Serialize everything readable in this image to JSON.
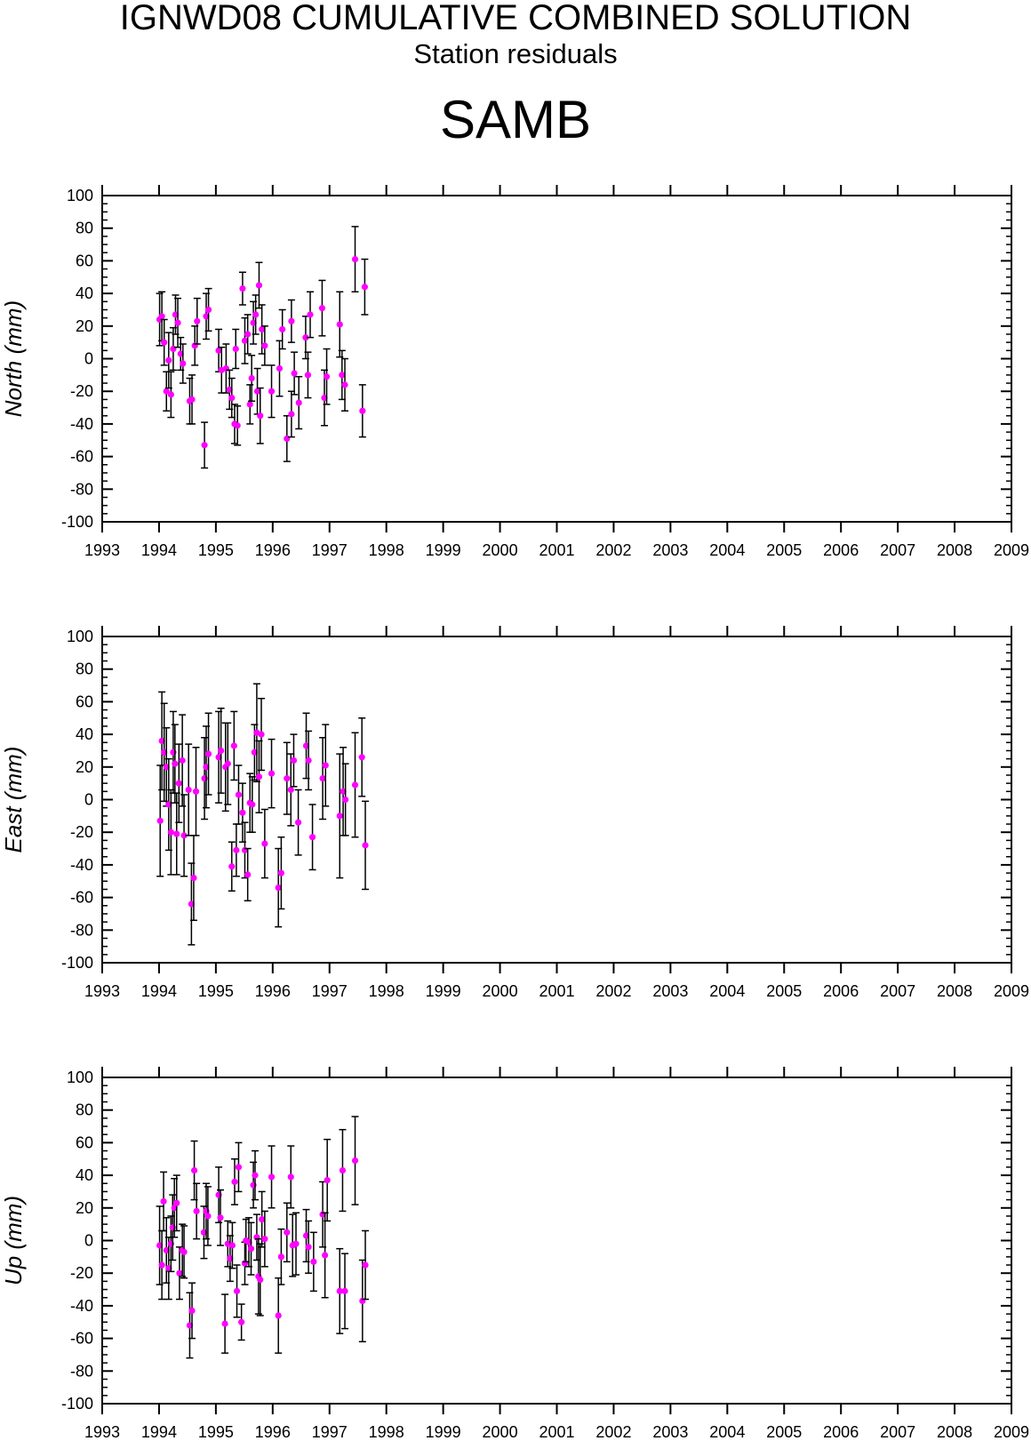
{
  "header": {
    "title": "IGNWD08 CUMULATIVE COMBINED SOLUTION",
    "subtitle": "Station residuals",
    "station": "SAMB"
  },
  "colors": {
    "point": "#ff00ff",
    "errorbar": "#000000",
    "axis": "#000000"
  },
  "chart_data": [
    {
      "type": "scatter",
      "ylabel": "North (mm)",
      "xlim": [
        1993,
        2009
      ],
      "ylim": [
        -100,
        100
      ],
      "x_ticks": [
        "1993",
        "1994",
        "1995",
        "1996",
        "1997",
        "1998",
        "1999",
        "2000",
        "2001",
        "2002",
        "2003",
        "2004",
        "2005",
        "2006",
        "2007",
        "2008",
        "2009"
      ],
      "y_ticks": [
        "100",
        "80",
        "60",
        "40",
        "20",
        "0",
        "-20",
        "-40",
        "-60",
        "-80",
        "-100"
      ],
      "error_bars": true,
      "points": [
        {
          "x": 1994.01,
          "y": 24,
          "err": 16
        },
        {
          "x": 1994.05,
          "y": 26,
          "err": 15
        },
        {
          "x": 1994.09,
          "y": 10,
          "err": 14
        },
        {
          "x": 1994.13,
          "y": -20,
          "err": 12
        },
        {
          "x": 1994.17,
          "y": -1,
          "err": 17
        },
        {
          "x": 1994.21,
          "y": -22,
          "err": 14
        },
        {
          "x": 1994.25,
          "y": 6,
          "err": 13
        },
        {
          "x": 1994.29,
          "y": 27,
          "err": 12
        },
        {
          "x": 1994.33,
          "y": 22,
          "err": 15
        },
        {
          "x": 1994.38,
          "y": 3,
          "err": 10
        },
        {
          "x": 1994.42,
          "y": -3,
          "err": 12
        },
        {
          "x": 1994.54,
          "y": -26,
          "err": 14
        },
        {
          "x": 1994.58,
          "y": -25,
          "err": 15
        },
        {
          "x": 1994.63,
          "y": 8,
          "err": 12
        },
        {
          "x": 1994.67,
          "y": 23,
          "err": 14
        },
        {
          "x": 1994.8,
          "y": -53,
          "err": 14
        },
        {
          "x": 1994.83,
          "y": 26,
          "err": 14
        },
        {
          "x": 1994.87,
          "y": 30,
          "err": 13
        },
        {
          "x": 1995.05,
          "y": 5,
          "err": 13
        },
        {
          "x": 1995.1,
          "y": -7,
          "err": 14
        },
        {
          "x": 1995.18,
          "y": -6,
          "err": 15
        },
        {
          "x": 1995.24,
          "y": -19,
          "err": 12
        },
        {
          "x": 1995.28,
          "y": -24,
          "err": 12
        },
        {
          "x": 1995.33,
          "y": -40,
          "err": 12
        },
        {
          "x": 1995.38,
          "y": -41,
          "err": 12
        },
        {
          "x": 1995.35,
          "y": 6,
          "err": 12
        },
        {
          "x": 1995.47,
          "y": 43,
          "err": 10
        },
        {
          "x": 1995.51,
          "y": 11,
          "err": 14
        },
        {
          "x": 1995.56,
          "y": 15,
          "err": 12
        },
        {
          "x": 1995.6,
          "y": -28,
          "err": 12
        },
        {
          "x": 1995.63,
          "y": -12,
          "err": 14
        },
        {
          "x": 1995.66,
          "y": 22,
          "err": 13
        },
        {
          "x": 1995.7,
          "y": 27,
          "err": 12
        },
        {
          "x": 1995.73,
          "y": -20,
          "err": 14
        },
        {
          "x": 1995.76,
          "y": 45,
          "err": 14
        },
        {
          "x": 1995.78,
          "y": -35,
          "err": 17
        },
        {
          "x": 1995.81,
          "y": 18,
          "err": 15
        },
        {
          "x": 1995.86,
          "y": 8,
          "err": 12
        },
        {
          "x": 1995.98,
          "y": -20,
          "err": 16
        },
        {
          "x": 1996.12,
          "y": -6,
          "err": 17
        },
        {
          "x": 1996.17,
          "y": 18,
          "err": 12
        },
        {
          "x": 1996.25,
          "y": -49,
          "err": 14
        },
        {
          "x": 1996.33,
          "y": -34,
          "err": 14
        },
        {
          "x": 1996.33,
          "y": 23,
          "err": 13
        },
        {
          "x": 1996.38,
          "y": -9,
          "err": 13
        },
        {
          "x": 1996.46,
          "y": -27,
          "err": 16
        },
        {
          "x": 1996.58,
          "y": 13,
          "err": 13
        },
        {
          "x": 1996.62,
          "y": -10,
          "err": 14
        },
        {
          "x": 1996.66,
          "y": 27,
          "err": 14
        },
        {
          "x": 1996.87,
          "y": 31,
          "err": 17
        },
        {
          "x": 1996.91,
          "y": -24,
          "err": 17
        },
        {
          "x": 1996.95,
          "y": -11,
          "err": 17
        },
        {
          "x": 1997.18,
          "y": 21,
          "err": 20
        },
        {
          "x": 1997.22,
          "y": -10,
          "err": 15
        },
        {
          "x": 1997.27,
          "y": -16,
          "err": 16
        },
        {
          "x": 1997.45,
          "y": 61,
          "err": 20
        },
        {
          "x": 1997.58,
          "y": -32,
          "err": 16
        },
        {
          "x": 1997.62,
          "y": 44,
          "err": 17
        }
      ]
    },
    {
      "type": "scatter",
      "ylabel": "East (mm)",
      "xlim": [
        1993,
        2009
      ],
      "ylim": [
        -100,
        100
      ],
      "x_ticks": [
        "1993",
        "1994",
        "1995",
        "1996",
        "1997",
        "1998",
        "1999",
        "2000",
        "2001",
        "2002",
        "2003",
        "2004",
        "2005",
        "2006",
        "2007",
        "2008",
        "2009"
      ],
      "y_ticks": [
        "100",
        "80",
        "60",
        "40",
        "20",
        "0",
        "-20",
        "-40",
        "-60",
        "-80",
        "-100"
      ],
      "error_bars": true,
      "points": [
        {
          "x": 1994.02,
          "y": -13,
          "err": 34
        },
        {
          "x": 1994.05,
          "y": 36,
          "err": 30
        },
        {
          "x": 1994.09,
          "y": 29,
          "err": 30
        },
        {
          "x": 1994.13,
          "y": 20,
          "err": 24
        },
        {
          "x": 1994.17,
          "y": -3,
          "err": 28
        },
        {
          "x": 1994.21,
          "y": -20,
          "err": 26
        },
        {
          "x": 1994.25,
          "y": 29,
          "err": 25
        },
        {
          "x": 1994.28,
          "y": 22,
          "err": 24
        },
        {
          "x": 1994.31,
          "y": -21,
          "err": 25
        },
        {
          "x": 1994.35,
          "y": 10,
          "err": 24
        },
        {
          "x": 1994.41,
          "y": 24,
          "err": 28
        },
        {
          "x": 1994.44,
          "y": -22,
          "err": 25
        },
        {
          "x": 1994.52,
          "y": 6,
          "err": 28
        },
        {
          "x": 1994.57,
          "y": -64,
          "err": 25
        },
        {
          "x": 1994.61,
          "y": -48,
          "err": 26
        },
        {
          "x": 1994.65,
          "y": 5,
          "err": 27
        },
        {
          "x": 1994.8,
          "y": 13,
          "err": 25
        },
        {
          "x": 1994.83,
          "y": 20,
          "err": 25
        },
        {
          "x": 1994.87,
          "y": 28,
          "err": 25
        },
        {
          "x": 1995.05,
          "y": 26,
          "err": 28
        },
        {
          "x": 1995.09,
          "y": 30,
          "err": 26
        },
        {
          "x": 1995.17,
          "y": 20,
          "err": 27
        },
        {
          "x": 1995.21,
          "y": 22,
          "err": 25
        },
        {
          "x": 1995.28,
          "y": -41,
          "err": 15
        },
        {
          "x": 1995.32,
          "y": 33,
          "err": 21
        },
        {
          "x": 1995.36,
          "y": -31,
          "err": 16
        },
        {
          "x": 1995.4,
          "y": 3,
          "err": 18
        },
        {
          "x": 1995.47,
          "y": -8,
          "err": 18
        },
        {
          "x": 1995.51,
          "y": -31,
          "err": 17
        },
        {
          "x": 1995.56,
          "y": -46,
          "err": 16
        },
        {
          "x": 1995.6,
          "y": -2,
          "err": 18
        },
        {
          "x": 1995.64,
          "y": -3,
          "err": 17
        },
        {
          "x": 1995.68,
          "y": 29,
          "err": 17
        },
        {
          "x": 1995.72,
          "y": 41,
          "err": 30
        },
        {
          "x": 1995.76,
          "y": 14,
          "err": 22
        },
        {
          "x": 1995.8,
          "y": 40,
          "err": 22
        },
        {
          "x": 1995.86,
          "y": -27,
          "err": 21
        },
        {
          "x": 1995.98,
          "y": 16,
          "err": 21
        },
        {
          "x": 1996.1,
          "y": -54,
          "err": 24
        },
        {
          "x": 1996.15,
          "y": -45,
          "err": 22
        },
        {
          "x": 1996.25,
          "y": 13,
          "err": 22
        },
        {
          "x": 1996.32,
          "y": 6,
          "err": 22
        },
        {
          "x": 1996.37,
          "y": 24,
          "err": 16
        },
        {
          "x": 1996.45,
          "y": -14,
          "err": 20
        },
        {
          "x": 1996.59,
          "y": 33,
          "err": 20
        },
        {
          "x": 1996.63,
          "y": 24,
          "err": 18
        },
        {
          "x": 1996.7,
          "y": -23,
          "err": 20
        },
        {
          "x": 1996.88,
          "y": 13,
          "err": 25
        },
        {
          "x": 1996.93,
          "y": 21,
          "err": 25
        },
        {
          "x": 1997.18,
          "y": -10,
          "err": 38
        },
        {
          "x": 1997.24,
          "y": 5,
          "err": 27
        },
        {
          "x": 1997.28,
          "y": 0,
          "err": 22
        },
        {
          "x": 1997.45,
          "y": 9,
          "err": 32
        },
        {
          "x": 1997.57,
          "y": 26,
          "err": 24
        },
        {
          "x": 1997.63,
          "y": -28,
          "err": 27
        }
      ]
    },
    {
      "type": "scatter",
      "ylabel": "Up (mm)",
      "xlim": [
        1993,
        2009
      ],
      "ylim": [
        -100,
        100
      ],
      "x_ticks": [
        "1993",
        "1994",
        "1995",
        "1996",
        "1997",
        "1998",
        "1999",
        "2000",
        "2001",
        "2002",
        "2003",
        "2004",
        "2005",
        "2006",
        "2007",
        "2008",
        "2009"
      ],
      "y_ticks": [
        "100",
        "80",
        "60",
        "40",
        "20",
        "0",
        "-20",
        "-40",
        "-60",
        "-80",
        "-100"
      ],
      "error_bars": true,
      "points": [
        {
          "x": 1994.01,
          "y": -3,
          "err": 24
        },
        {
          "x": 1994.05,
          "y": -15,
          "err": 21
        },
        {
          "x": 1994.08,
          "y": 24,
          "err": 18
        },
        {
          "x": 1994.13,
          "y": -6,
          "err": 20
        },
        {
          "x": 1994.17,
          "y": -17,
          "err": 19
        },
        {
          "x": 1994.21,
          "y": -2,
          "err": 17
        },
        {
          "x": 1994.24,
          "y": 8,
          "err": 20
        },
        {
          "x": 1994.27,
          "y": 20,
          "err": 18
        },
        {
          "x": 1994.31,
          "y": 23,
          "err": 17
        },
        {
          "x": 1994.36,
          "y": -20,
          "err": 16
        },
        {
          "x": 1994.41,
          "y": -6,
          "err": 16
        },
        {
          "x": 1994.44,
          "y": -7,
          "err": 16
        },
        {
          "x": 1994.54,
          "y": -52,
          "err": 20
        },
        {
          "x": 1994.58,
          "y": -43,
          "err": 17
        },
        {
          "x": 1994.62,
          "y": 43,
          "err": 18
        },
        {
          "x": 1994.66,
          "y": 18,
          "err": 17
        },
        {
          "x": 1994.79,
          "y": 5,
          "err": 16
        },
        {
          "x": 1994.83,
          "y": 18,
          "err": 17
        },
        {
          "x": 1994.86,
          "y": 15,
          "err": 18
        },
        {
          "x": 1995.05,
          "y": 28,
          "err": 17
        },
        {
          "x": 1995.08,
          "y": 14,
          "err": 17
        },
        {
          "x": 1995.16,
          "y": -51,
          "err": 18
        },
        {
          "x": 1995.21,
          "y": -2,
          "err": 14
        },
        {
          "x": 1995.25,
          "y": -11,
          "err": 14
        },
        {
          "x": 1995.29,
          "y": -3,
          "err": 14
        },
        {
          "x": 1995.33,
          "y": 36,
          "err": 14
        },
        {
          "x": 1995.37,
          "y": -31,
          "err": 16
        },
        {
          "x": 1995.4,
          "y": 45,
          "err": 15
        },
        {
          "x": 1995.45,
          "y": -50,
          "err": 11
        },
        {
          "x": 1995.51,
          "y": -14,
          "err": 13
        },
        {
          "x": 1995.53,
          "y": 0,
          "err": 13
        },
        {
          "x": 1995.58,
          "y": -1,
          "err": 15
        },
        {
          "x": 1995.62,
          "y": -5,
          "err": 16
        },
        {
          "x": 1995.66,
          "y": 34,
          "err": 14
        },
        {
          "x": 1995.69,
          "y": 40,
          "err": 15
        },
        {
          "x": 1995.72,
          "y": 2,
          "err": 14
        },
        {
          "x": 1995.75,
          "y": -22,
          "err": 23
        },
        {
          "x": 1995.78,
          "y": -24,
          "err": 22
        },
        {
          "x": 1995.81,
          "y": 13,
          "err": 17
        },
        {
          "x": 1995.86,
          "y": 1,
          "err": 17
        },
        {
          "x": 1995.98,
          "y": 39,
          "err": 19
        },
        {
          "x": 1996.1,
          "y": -46,
          "err": 23
        },
        {
          "x": 1996.15,
          "y": -10,
          "err": 17
        },
        {
          "x": 1996.25,
          "y": 5,
          "err": 18
        },
        {
          "x": 1996.32,
          "y": 39,
          "err": 19
        },
        {
          "x": 1996.35,
          "y": -3,
          "err": 19
        },
        {
          "x": 1996.41,
          "y": -2,
          "err": 19
        },
        {
          "x": 1996.59,
          "y": 3,
          "err": 16
        },
        {
          "x": 1996.63,
          "y": -4,
          "err": 16
        },
        {
          "x": 1996.72,
          "y": -13,
          "err": 18
        },
        {
          "x": 1996.88,
          "y": 16,
          "err": 20
        },
        {
          "x": 1996.92,
          "y": -9,
          "err": 26
        },
        {
          "x": 1996.96,
          "y": 37,
          "err": 25
        },
        {
          "x": 1997.18,
          "y": -31,
          "err": 26
        },
        {
          "x": 1997.23,
          "y": 43,
          "err": 25
        },
        {
          "x": 1997.27,
          "y": -31,
          "err": 23
        },
        {
          "x": 1997.45,
          "y": 49,
          "err": 27
        },
        {
          "x": 1997.58,
          "y": -37,
          "err": 25
        },
        {
          "x": 1997.63,
          "y": -15,
          "err": 21
        }
      ]
    }
  ]
}
